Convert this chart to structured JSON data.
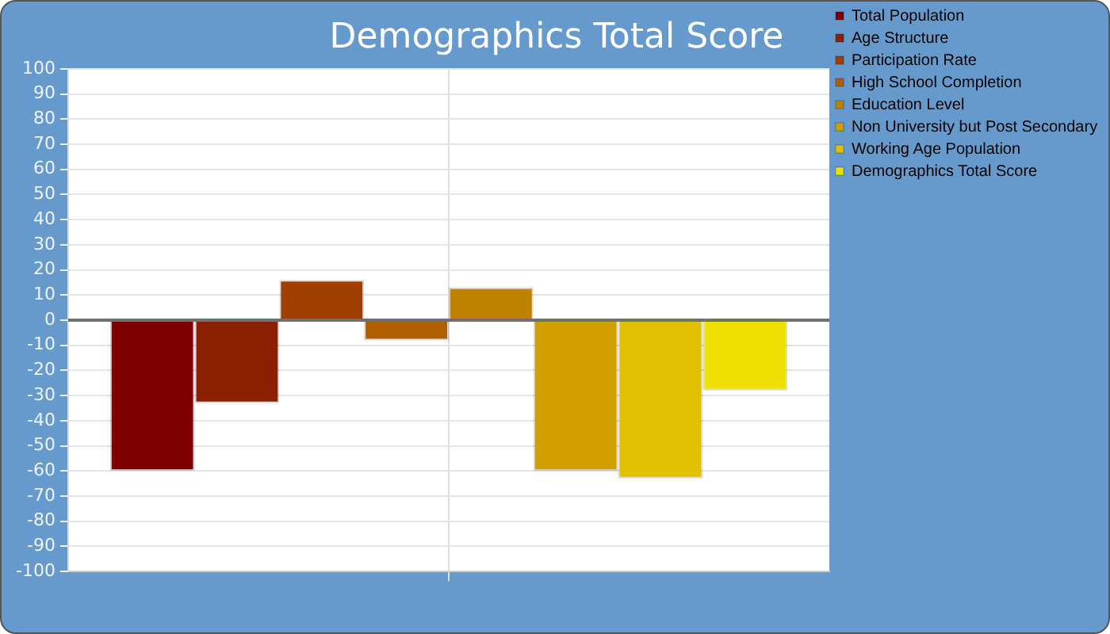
{
  "chart_data": {
    "type": "bar",
    "title": "Demographics Total Score",
    "categories": [
      null
    ],
    "series": [
      {
        "name": "Total Population",
        "color": "#800000",
        "values": [
          -60
        ]
      },
      {
        "name": "Age Structure",
        "color": "#8c1f00",
        "values": [
          -33
        ]
      },
      {
        "name": "Participation Rate",
        "color": "#a04000",
        "values": [
          16
        ]
      },
      {
        "name": "High School Completion",
        "color": "#b05e00",
        "values": [
          -8
        ]
      },
      {
        "name": "Education Level",
        "color": "#c08000",
        "values": [
          13
        ]
      },
      {
        "name": "Non University but Post Secondary",
        "color": "#d0a000",
        "values": [
          -60
        ]
      },
      {
        "name": "Working Age Population",
        "color": "#e0c000",
        "values": [
          -63
        ]
      },
      {
        "name": "Demographics Total Score",
        "color": "#f0e000",
        "values": [
          -28
        ]
      }
    ],
    "ylim": [
      -100,
      100
    ],
    "yticks": [
      -100,
      -90,
      -80,
      -70,
      -60,
      -50,
      -40,
      -30,
      -20,
      -10,
      0,
      10,
      20,
      30,
      40,
      50,
      60,
      70,
      80,
      90,
      100
    ],
    "ref_lines": [
      {
        "axis": "y",
        "value": 0,
        "color": "#707070"
      }
    ],
    "grid": true,
    "legend": "right"
  }
}
